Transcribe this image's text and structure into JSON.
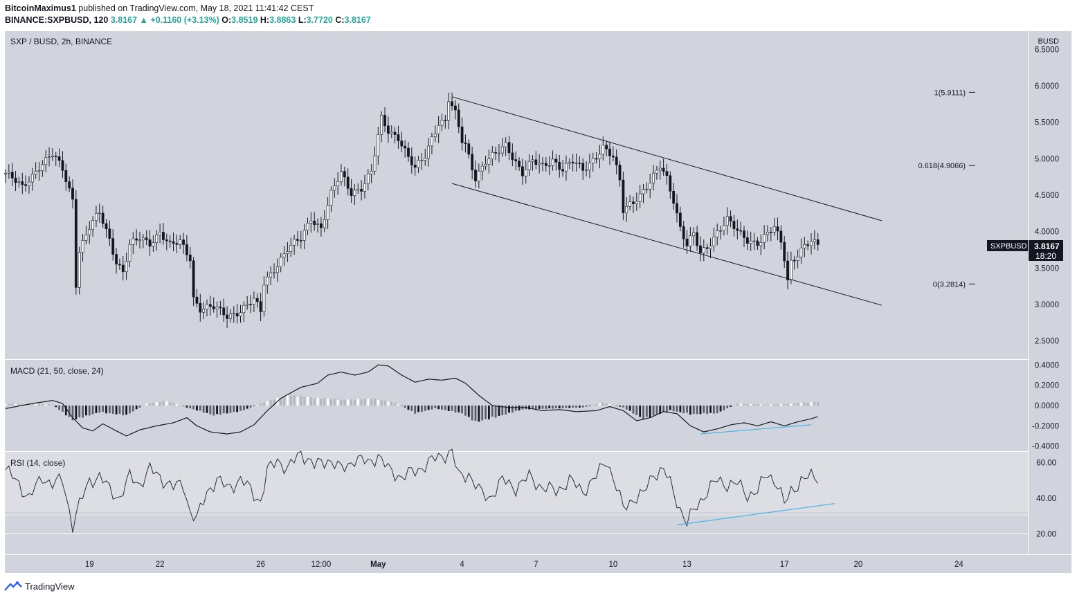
{
  "header": {
    "publisher": "BitcoinMaximus1",
    "published_text": "published on TradingView.com, May 18, 2021 11:41:42 CEST",
    "symbol_line": "BINANCE:SXPBUSD, 120",
    "last": "3.8167",
    "change": "+0.1160 (+3.13%)",
    "o_label": "O:",
    "o": "3.8519",
    "h_label": "H:",
    "h": "3.8863",
    "l_label": "L:",
    "l": "3.7720",
    "c_label": "C:",
    "c": "3.8167"
  },
  "footer": {
    "brand": "TradingView",
    "logo_icon": "tradingview-logo-icon"
  },
  "colors": {
    "pane_bg": "#d1d4dc",
    "rsi_band": "#dcdee4",
    "line": "#131722",
    "trend_blue": "#4bb3e6",
    "axis_text": "#131722"
  },
  "chart_data": {
    "type": "candlestick",
    "title": "SXP / BUSD, 2h, BINANCE",
    "currency": "BUSD",
    "x_tick_labels": [
      "19",
      "22",
      "26",
      "12:00",
      "May",
      "4",
      "7",
      "10",
      "13",
      "17",
      "20",
      "24"
    ],
    "price_axis": {
      "ylim": [
        2.25,
        6.75
      ],
      "ticks": [
        "6.5000",
        "6.0000",
        "5.5000",
        "5.0000",
        "4.5000",
        "4.0000",
        "3.5000",
        "3.0000",
        "2.5000"
      ]
    },
    "last_price": {
      "label": "SXPBUSD",
      "value": "3.8167",
      "countdown": "18:20"
    },
    "fib_levels": [
      {
        "label": "1(5.9111)",
        "value": 5.9111
      },
      {
        "label": "0.618(4.9066)",
        "value": 4.9066
      },
      {
        "label": "0(3.2814)",
        "value": 3.2814
      }
    ],
    "price_path": [
      [
        0,
        4.8
      ],
      [
        5,
        4.6
      ],
      [
        10,
        4.9
      ],
      [
        14,
        5.05
      ],
      [
        17,
        4.85
      ],
      [
        20,
        4.45
      ],
      [
        21,
        3.3
      ],
      [
        22,
        3.75
      ],
      [
        25,
        4.05
      ],
      [
        28,
        4.25
      ],
      [
        31,
        3.9
      ],
      [
        33,
        3.6
      ],
      [
        35,
        3.45
      ],
      [
        37,
        3.8
      ],
      [
        40,
        3.9
      ],
      [
        43,
        3.85
      ],
      [
        46,
        4.0
      ],
      [
        49,
        3.8
      ],
      [
        52,
        3.85
      ],
      [
        55,
        3.65
      ],
      [
        56,
        3.1
      ],
      [
        58,
        2.95
      ],
      [
        62,
        2.95
      ],
      [
        66,
        2.85
      ],
      [
        70,
        2.92
      ],
      [
        74,
        3.05
      ],
      [
        76,
        2.9
      ],
      [
        77,
        3.3
      ],
      [
        80,
        3.5
      ],
      [
        84,
        3.75
      ],
      [
        88,
        3.9
      ],
      [
        91,
        4.2
      ],
      [
        94,
        4.05
      ],
      [
        97,
        4.5
      ],
      [
        100,
        4.8
      ],
      [
        103,
        4.55
      ],
      [
        106,
        4.6
      ],
      [
        109,
        4.8
      ],
      [
        111,
        5.3
      ],
      [
        112,
        5.55
      ],
      [
        114,
        5.4
      ],
      [
        117,
        5.3
      ],
      [
        120,
        5.0
      ],
      [
        122,
        4.85
      ],
      [
        125,
        5.05
      ],
      [
        127,
        5.3
      ],
      [
        129,
        5.5
      ],
      [
        131,
        5.5
      ],
      [
        132,
        5.8
      ],
      [
        134,
        5.6
      ],
      [
        136,
        5.25
      ],
      [
        137,
        5.2
      ],
      [
        140,
        4.75
      ],
      [
        143,
        4.95
      ],
      [
        146,
        5.05
      ],
      [
        149,
        5.2
      ],
      [
        151,
        5.05
      ],
      [
        154,
        4.8
      ],
      [
        157,
        4.95
      ],
      [
        160,
        4.9
      ],
      [
        163,
        5.0
      ],
      [
        166,
        4.85
      ],
      [
        169,
        4.95
      ],
      [
        172,
        4.85
      ],
      [
        175,
        5.0
      ],
      [
        178,
        5.15
      ],
      [
        181,
        5.0
      ],
      [
        183,
        4.7
      ],
      [
        184,
        4.3
      ],
      [
        186,
        4.4
      ],
      [
        189,
        4.5
      ],
      [
        192,
        4.65
      ],
      [
        195,
        4.9
      ],
      [
        197,
        4.75
      ],
      [
        199,
        4.45
      ],
      [
        201,
        4.05
      ],
      [
        203,
        3.8
      ],
      [
        205,
        3.95
      ],
      [
        207,
        3.7
      ],
      [
        209,
        3.8
      ],
      [
        212,
        4.0
      ],
      [
        215,
        4.15
      ],
      [
        218,
        4.0
      ],
      [
        221,
        3.9
      ],
      [
        224,
        3.85
      ],
      [
        227,
        3.95
      ],
      [
        229,
        4.05
      ],
      [
        231,
        3.85
      ],
      [
        232,
        3.65
      ],
      [
        233,
        3.35
      ],
      [
        234,
        3.6
      ],
      [
        237,
        3.75
      ],
      [
        240,
        3.85
      ],
      [
        242,
        3.8
      ]
    ],
    "channel": {
      "upper": [
        [
          133,
          5.85
        ],
        [
          261,
          4.15
        ]
      ],
      "lower": [
        [
          133,
          4.66
        ],
        [
          261,
          2.99
        ]
      ]
    },
    "macd": {
      "title": "MACD (21, 50, close, 24)",
      "ylim": [
        -0.45,
        0.45
      ],
      "ticks": [
        "0.4000",
        "0.2000",
        "0.0000",
        "-0.2000",
        "-0.4000"
      ],
      "line_path": [
        [
          0,
          -0.03
        ],
        [
          8,
          0.02
        ],
        [
          14,
          0.05
        ],
        [
          17,
          0.02
        ],
        [
          20,
          -0.12
        ],
        [
          23,
          -0.22
        ],
        [
          26,
          -0.25
        ],
        [
          29,
          -0.18
        ],
        [
          33,
          -0.25
        ],
        [
          36,
          -0.3
        ],
        [
          40,
          -0.24
        ],
        [
          45,
          -0.2
        ],
        [
          50,
          -0.17
        ],
        [
          54,
          -0.12
        ],
        [
          57,
          -0.2
        ],
        [
          61,
          -0.26
        ],
        [
          66,
          -0.28
        ],
        [
          70,
          -0.26
        ],
        [
          74,
          -0.19
        ],
        [
          78,
          -0.05
        ],
        [
          82,
          0.07
        ],
        [
          88,
          0.18
        ],
        [
          93,
          0.22
        ],
        [
          96,
          0.3
        ],
        [
          100,
          0.33
        ],
        [
          104,
          0.3
        ],
        [
          108,
          0.33
        ],
        [
          111,
          0.4
        ],
        [
          114,
          0.39
        ],
        [
          118,
          0.3
        ],
        [
          122,
          0.23
        ],
        [
          126,
          0.26
        ],
        [
          130,
          0.25
        ],
        [
          134,
          0.27
        ],
        [
          137,
          0.22
        ],
        [
          141,
          0.1
        ],
        [
          145,
          0.0
        ],
        [
          150,
          -0.02
        ],
        [
          155,
          -0.02
        ],
        [
          160,
          -0.05
        ],
        [
          165,
          -0.04
        ],
        [
          170,
          -0.06
        ],
        [
          176,
          -0.05
        ],
        [
          180,
          -0.01
        ],
        [
          184,
          -0.05
        ],
        [
          188,
          -0.15
        ],
        [
          192,
          -0.12
        ],
        [
          196,
          -0.06
        ],
        [
          200,
          -0.08
        ],
        [
          204,
          -0.2
        ],
        [
          208,
          -0.26
        ],
        [
          212,
          -0.23
        ],
        [
          216,
          -0.19
        ],
        [
          220,
          -0.17
        ],
        [
          224,
          -0.2
        ],
        [
          228,
          -0.16
        ],
        [
          232,
          -0.2
        ],
        [
          236,
          -0.16
        ],
        [
          240,
          -0.13
        ],
        [
          242,
          -0.11
        ]
      ],
      "histogram_points": [
        [
          0,
          0.02
        ],
        [
          14,
          0.01
        ],
        [
          20,
          -0.15
        ],
        [
          28,
          -0.07
        ],
        [
          36,
          -0.1
        ],
        [
          42,
          0.02
        ],
        [
          48,
          0.05
        ],
        [
          54,
          -0.02
        ],
        [
          62,
          -0.1
        ],
        [
          70,
          -0.06
        ],
        [
          76,
          0.02
        ],
        [
          84,
          0.11
        ],
        [
          92,
          0.08
        ],
        [
          100,
          0.06
        ],
        [
          110,
          0.07
        ],
        [
          116,
          0.03
        ],
        [
          122,
          -0.08
        ],
        [
          128,
          -0.03
        ],
        [
          136,
          -0.08
        ],
        [
          140,
          -0.17
        ],
        [
          146,
          -0.12
        ],
        [
          154,
          -0.04
        ],
        [
          164,
          -0.03
        ],
        [
          172,
          -0.02
        ],
        [
          178,
          0.03
        ],
        [
          184,
          -0.02
        ],
        [
          190,
          -0.14
        ],
        [
          198,
          -0.05
        ],
        [
          204,
          -0.09
        ],
        [
          212,
          -0.08
        ],
        [
          218,
          0.02
        ],
        [
          226,
          0.01
        ],
        [
          234,
          0.02
        ],
        [
          242,
          0.04
        ]
      ],
      "divergence_line": [
        [
          207,
          -0.28
        ],
        [
          240,
          -0.19
        ]
      ]
    },
    "rsi": {
      "title": "RSI (14, close)",
      "ylim": [
        8.5,
        66
      ],
      "ticks": [
        "60.00",
        "40.00",
        "20.00"
      ],
      "band": [
        30,
        70
      ],
      "line_path": [
        [
          0,
          56
        ],
        [
          4,
          48
        ],
        [
          7,
          40
        ],
        [
          11,
          52
        ],
        [
          14,
          48
        ],
        [
          17,
          50
        ],
        [
          20,
          25
        ],
        [
          22,
          36
        ],
        [
          25,
          50
        ],
        [
          28,
          52
        ],
        [
          31,
          45
        ],
        [
          34,
          40
        ],
        [
          37,
          52
        ],
        [
          40,
          48
        ],
        [
          43,
          56
        ],
        [
          46,
          52
        ],
        [
          50,
          46
        ],
        [
          53,
          48
        ],
        [
          55,
          32
        ],
        [
          57,
          28
        ],
        [
          60,
          44
        ],
        [
          63,
          50
        ],
        [
          66,
          46
        ],
        [
          70,
          50
        ],
        [
          73,
          45
        ],
        [
          76,
          38
        ],
        [
          78,
          55
        ],
        [
          81,
          62
        ],
        [
          84,
          56
        ],
        [
          88,
          66
        ],
        [
          92,
          58
        ],
        [
          96,
          62
        ],
        [
          100,
          56
        ],
        [
          104,
          62
        ],
        [
          108,
          60
        ],
        [
          111,
          64
        ],
        [
          114,
          56
        ],
        [
          118,
          52
        ],
        [
          122,
          55
        ],
        [
          126,
          60
        ],
        [
          130,
          64
        ],
        [
          133,
          66
        ],
        [
          135,
          52
        ],
        [
          138,
          54
        ],
        [
          141,
          44
        ],
        [
          144,
          40
        ],
        [
          148,
          50
        ],
        [
          152,
          46
        ],
        [
          156,
          52
        ],
        [
          160,
          46
        ],
        [
          164,
          44
        ],
        [
          168,
          50
        ],
        [
          172,
          44
        ],
        [
          176,
          52
        ],
        [
          179,
          62
        ],
        [
          182,
          46
        ],
        [
          184,
          34
        ],
        [
          187,
          40
        ],
        [
          190,
          42
        ],
        [
          193,
          54
        ],
        [
          196,
          56
        ],
        [
          198,
          48
        ],
        [
          201,
          34
        ],
        [
          203,
          26
        ],
        [
          206,
          36
        ],
        [
          209,
          44
        ],
        [
          212,
          50
        ],
        [
          215,
          48
        ],
        [
          218,
          48
        ],
        [
          221,
          42
        ],
        [
          224,
          44
        ],
        [
          227,
          54
        ],
        [
          230,
          48
        ],
        [
          232,
          36
        ],
        [
          234,
          44
        ],
        [
          237,
          50
        ],
        [
          240,
          52
        ],
        [
          242,
          52
        ]
      ],
      "divergence_line": [
        [
          200,
          25
        ],
        [
          247,
          37
        ]
      ]
    }
  }
}
